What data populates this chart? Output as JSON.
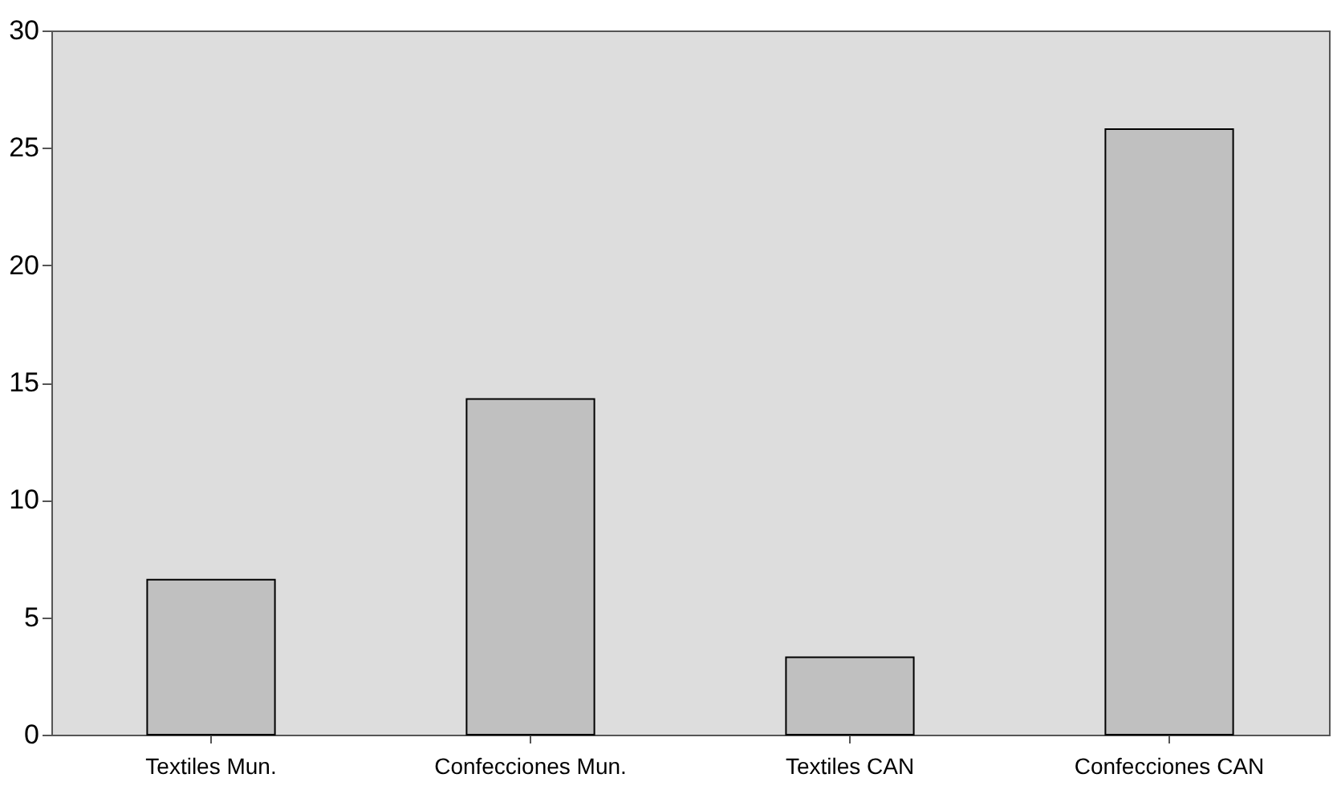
{
  "chart_data": {
    "type": "bar",
    "categories": [
      "Textiles Mun.",
      "Confecciones Mun.",
      "Textiles CAN",
      "Confecciones CAN"
    ],
    "values": [
      6.6,
      14.3,
      3.3,
      25.8
    ],
    "color": "#c0c0c0",
    "ylim": [
      0,
      30
    ],
    "yticks": [
      0,
      5,
      10,
      15,
      20,
      25,
      30
    ],
    "grid": false
  }
}
